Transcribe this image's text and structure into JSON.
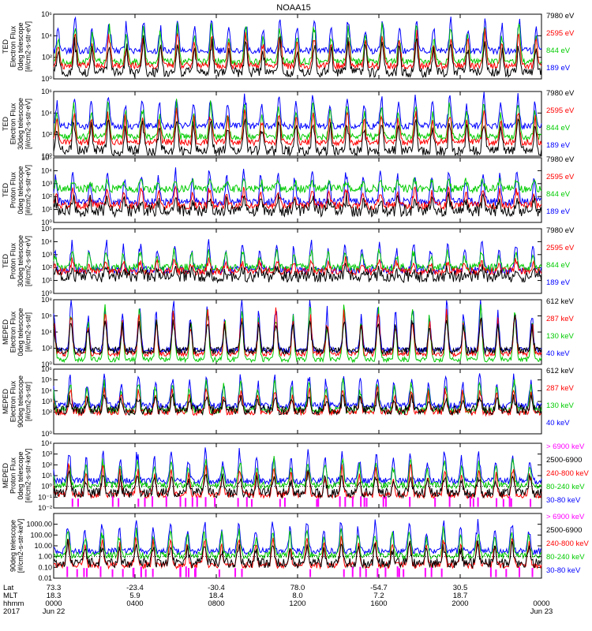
{
  "title": "NOAA15",
  "colors": {
    "black": "#000000",
    "blue": "#0000ff",
    "green": "#00cc00",
    "red": "#ff0000",
    "magenta": "#ff00ff"
  },
  "chart_data": [
    {
      "type": "line",
      "ylabel": [
        "TED",
        "Electron Flux",
        "0deg telescope",
        "[#/cm2-s-str-eV]"
      ],
      "ylim": [
        1,
        1000000
      ],
      "y_scale": "log",
      "y_ticks": [
        "10⁰",
        "10²",
        "10⁴",
        "10⁶"
      ],
      "y_tick_exps": [
        0,
        2,
        4,
        6
      ],
      "legend": [
        {
          "name": "7980 eV",
          "color": "#000000"
        },
        {
          "name": "2595 eV",
          "color": "#ff0000"
        },
        {
          "name": "844 eV",
          "color": "#00cc00"
        },
        {
          "name": "189 eV",
          "color": "#0000ff"
        }
      ],
      "baseline_exp": {
        "blue": 2.6,
        "green": 1.6,
        "red": 1.2,
        "black": 0.6
      },
      "spike_max_exp": 5.6
    },
    {
      "type": "line",
      "ylabel": [
        "TED",
        "Electron Flux",
        "30deg telescope",
        "[#/cm2-s-str-eV]"
      ],
      "ylim": [
        1,
        1000000
      ],
      "y_scale": "log",
      "y_ticks": [
        "10⁰",
        "10²",
        "10⁴",
        "10⁶"
      ],
      "y_tick_exps": [
        0,
        2,
        4,
        6
      ],
      "legend": [
        {
          "name": "7980 eV",
          "color": "#000000"
        },
        {
          "name": "2595 eV",
          "color": "#ff0000"
        },
        {
          "name": "844 eV",
          "color": "#00cc00"
        },
        {
          "name": "189 eV",
          "color": "#0000ff"
        }
      ],
      "baseline_exp": {
        "blue": 2.8,
        "green": 1.8,
        "red": 1.3,
        "black": 0.5
      },
      "spike_max_exp": 5.6
    },
    {
      "type": "line",
      "ylabel": [
        "TED",
        "Proton Flux",
        "0deg telescope",
        "[#/cm2-s-str-eV]"
      ],
      "ylim": [
        1,
        100000
      ],
      "y_scale": "log",
      "y_ticks": [
        "10⁰",
        "10¹",
        "10²",
        "10³",
        "10⁴",
        "10⁵"
      ],
      "y_tick_exps": [
        0,
        1,
        2,
        3,
        4,
        5
      ],
      "legend": [
        {
          "name": "7980 eV",
          "color": "#000000"
        },
        {
          "name": "2595 eV",
          "color": "#ff0000"
        },
        {
          "name": "844 eV",
          "color": "#00cc00"
        },
        {
          "name": "189 eV",
          "color": "#0000ff"
        }
      ],
      "baseline_exp": {
        "blue": 1.6,
        "green": 2.6,
        "red": 1.3,
        "black": 0.9
      },
      "spike_max_exp": 4.0
    },
    {
      "type": "line",
      "ylabel": [
        "TED",
        "Proton Flux",
        "30deg telescope",
        "[#/cm2-s-str-eV]"
      ],
      "ylim": [
        1,
        100000
      ],
      "y_scale": "log",
      "y_ticks": [
        "10⁰",
        "10¹",
        "10²",
        "10³",
        "10⁴",
        "10⁵"
      ],
      "y_tick_exps": [
        0,
        1,
        2,
        3,
        4,
        5
      ],
      "legend": [
        {
          "name": "7980 eV",
          "color": "#000000"
        },
        {
          "name": "2595 eV",
          "color": "#ff0000"
        },
        {
          "name": "844 eV",
          "color": "#00cc00"
        },
        {
          "name": "189 eV",
          "color": "#0000ff"
        }
      ],
      "baseline_exp": {
        "blue": 1.8,
        "green": 2.0,
        "red": 1.7,
        "black": 1.3
      },
      "spike_max_exp": 4.0
    },
    {
      "type": "line",
      "ylabel": [
        "MEPED",
        "Electron Flux",
        "0deg telescope",
        "[#/cm2-s-str]"
      ],
      "ylim": [
        1,
        100000000
      ],
      "y_scale": "log",
      "y_ticks": [
        "10⁰",
        "10²",
        "10⁴",
        "10⁶",
        "10⁸"
      ],
      "y_tick_exps": [
        0,
        2,
        4,
        6,
        8
      ],
      "legend": [
        {
          "name": "612 keV",
          "color": "#000000"
        },
        {
          "name": "287 keV",
          "color": "#ff0000"
        },
        {
          "name": "130 keV",
          "color": "#00cc00"
        },
        {
          "name": "40 keV",
          "color": "#0000ff"
        }
      ],
      "baseline_exp": {
        "blue": 1.8,
        "green": 0.6,
        "red": 1.3,
        "black": 1.7
      },
      "spike_max_exp": 7.8
    },
    {
      "type": "line",
      "ylabel": [
        "MEPED",
        "Electron Flux",
        "90deg telescope",
        "[#/cm2-s-str]"
      ],
      "ylim": [
        1,
        1000000
      ],
      "y_scale": "log",
      "y_ticks": [
        "10⁰",
        "10²",
        "10³",
        "10⁴",
        "10⁵",
        "10⁶"
      ],
      "y_tick_exps": [
        0,
        2,
        3,
        4,
        5,
        6
      ],
      "legend": [
        {
          "name": "612 keV",
          "color": "#000000"
        },
        {
          "name": "287 keV",
          "color": "#ff0000"
        },
        {
          "name": "130 keV",
          "color": "#00cc00"
        },
        {
          "name": "40 keV",
          "color": "#0000ff"
        }
      ],
      "baseline_exp": {
        "blue": 2.6,
        "green": 2.2,
        "red": 2.0,
        "black": 2.2
      },
      "spike_max_exp": 5.6
    },
    {
      "type": "line",
      "ylabel": [
        "MEPED",
        "Proton Flux",
        "0deg telescope",
        "[#/cm2-s-str-keV]"
      ],
      "ylim": [
        0.01,
        10000
      ],
      "y_scale": "log",
      "y_ticks": [
        "10⁻²",
        "10⁻¹",
        "10⁰",
        "10¹",
        "10²",
        "10³",
        "10⁴"
      ],
      "y_tick_exps": [
        -2,
        -1,
        0,
        1,
        2,
        3,
        4
      ],
      "legend": [
        {
          "name": "> 6900 keV",
          "color": "#ff00ff"
        },
        {
          "name": "2500-6900",
          "color": "#000000"
        },
        {
          "name": "240-800 keV",
          "color": "#ff0000"
        },
        {
          "name": "80-240 keV",
          "color": "#00cc00"
        },
        {
          "name": "30-80 keV",
          "color": "#0000ff"
        }
      ],
      "baseline_exp": {
        "blue": 0.5,
        "green": 0.1,
        "red": -0.8,
        "black": -0.6
      },
      "spike_max_exp": 3.2
    },
    {
      "type": "line",
      "ylabel": [
        "",
        "",
        "90deg telescope",
        "[#/cm2-s-str-keV]"
      ],
      "ylim": [
        0.01,
        10000
      ],
      "y_scale": "log",
      "y_ticks": [
        "0.01",
        "0.10",
        "1.00",
        "10.00",
        "100.00",
        "1000.00"
      ],
      "y_tick_exps": [
        -2,
        -1,
        0,
        1,
        2,
        3
      ],
      "legend": [
        {
          "name": "> 6900 keV",
          "color": "#ff00ff"
        },
        {
          "name": "2500-6900",
          "color": "#000000"
        },
        {
          "name": "240-800 keV",
          "color": "#ff0000"
        },
        {
          "name": "80-240 keV",
          "color": "#00cc00"
        },
        {
          "name": "30-80 keV",
          "color": "#0000ff"
        }
      ],
      "baseline_exp": {
        "blue": 0.5,
        "green": 0.1,
        "red": -0.8,
        "black": -0.6
      },
      "spike_max_exp": 3.2
    }
  ],
  "x_axis": {
    "row_labels": [
      "Lat",
      "MLT",
      "hhmm",
      "2017"
    ],
    "ticks": [
      {
        "hour": 0,
        "lat": "73.3",
        "mlt": "18.3",
        "hhmm": "0000",
        "date": "Jun 22"
      },
      {
        "hour": 4,
        "lat": "-23.4",
        "mlt": "5.9",
        "hhmm": "0400",
        "date": ""
      },
      {
        "hour": 8,
        "lat": "-30.4",
        "mlt": "18.4",
        "hhmm": "0800",
        "date": ""
      },
      {
        "hour": 12,
        "lat": "78.0",
        "mlt": "8.0",
        "hhmm": "1200",
        "date": ""
      },
      {
        "hour": 16,
        "lat": "-54.7",
        "mlt": "7.2",
        "hhmm": "1600",
        "date": ""
      },
      {
        "hour": 20,
        "lat": "30.5",
        "mlt": "18.7",
        "hhmm": "2000",
        "date": ""
      },
      {
        "hour": 24,
        "lat": "",
        "mlt": "",
        "hhmm": "0000",
        "date": "Jun 23"
      }
    ],
    "range_hours": [
      0,
      24
    ]
  }
}
